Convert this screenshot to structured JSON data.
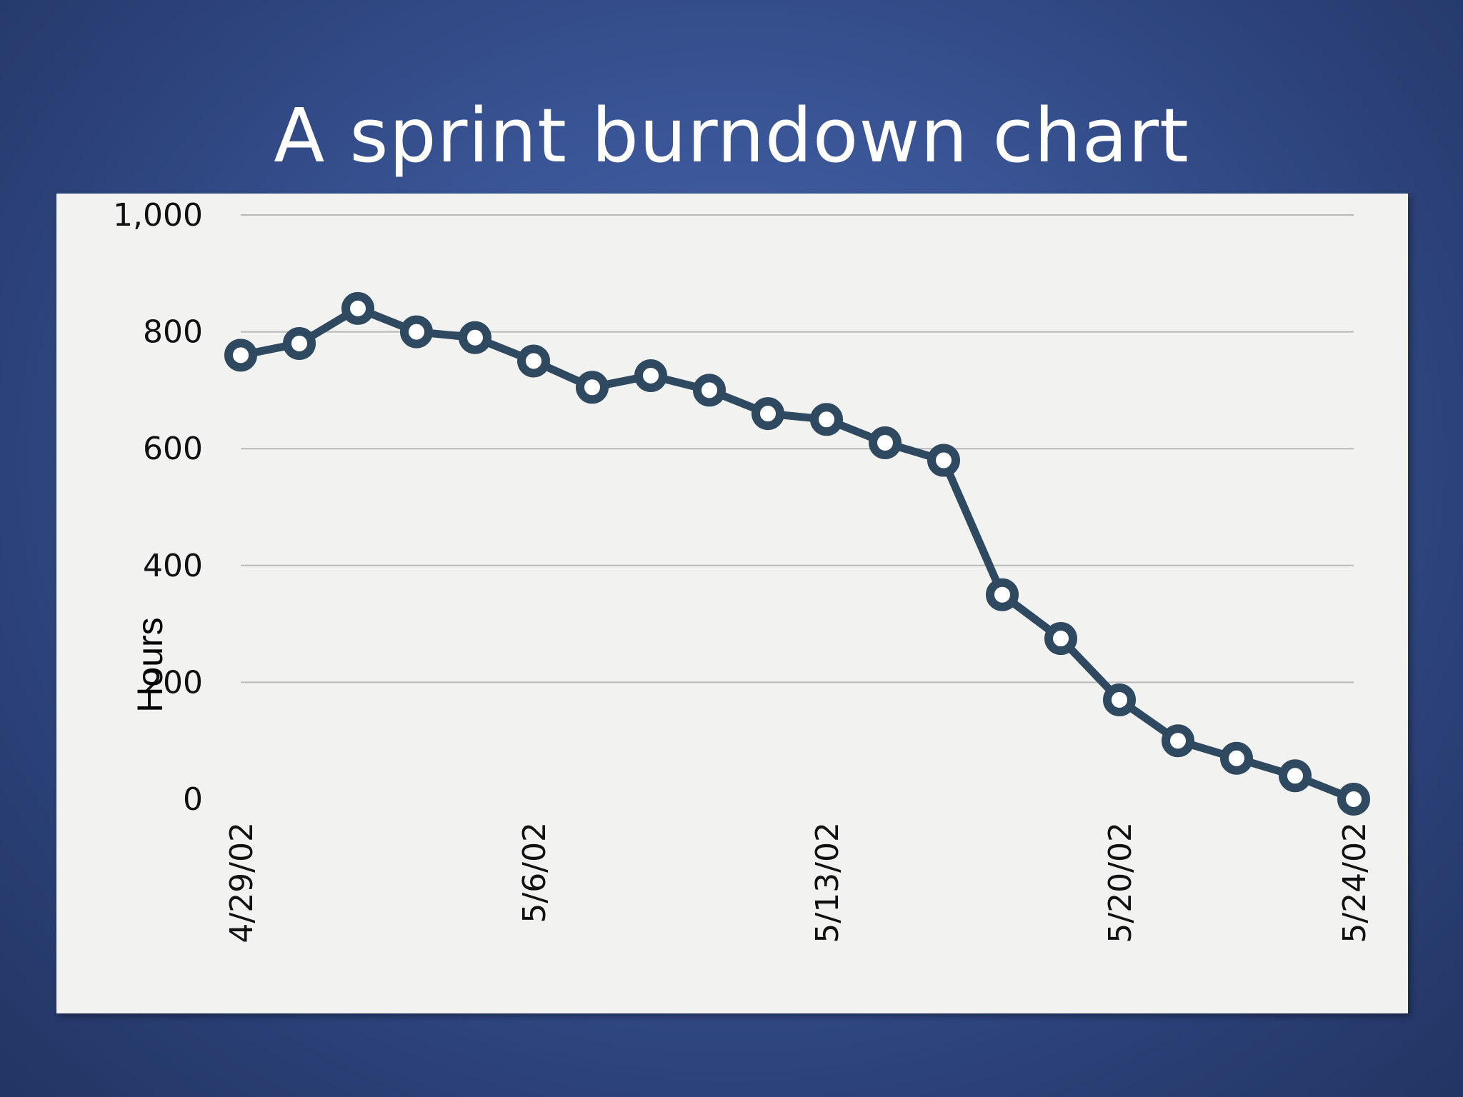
{
  "slide": {
    "title": "A sprint burndown chart",
    "background_color": "#3a5596"
  },
  "chart_data": {
    "type": "line",
    "title": "",
    "xlabel": "",
    "ylabel": "Hours",
    "ylim": [
      0,
      1000
    ],
    "yticks": [
      0,
      200,
      400,
      600,
      800,
      1000
    ],
    "ytick_labels": [
      "0",
      "200",
      "400",
      "600",
      "800",
      "1,000"
    ],
    "grid": true,
    "x": [
      "4/29/02",
      "4/30/02",
      "5/1/02",
      "5/2/02",
      "5/3/02",
      "5/6/02",
      "5/7/02",
      "5/8/02",
      "5/9/02",
      "5/10/02",
      "5/13/02",
      "5/14/02",
      "5/15/02",
      "5/16/02",
      "5/17/02",
      "5/20/02",
      "5/21/02",
      "5/22/02",
      "5/23/02",
      "5/24/02"
    ],
    "xtick_labels": [
      "4/29/02",
      "5/6/02",
      "5/13/02",
      "5/20/02",
      "5/24/02"
    ],
    "series": [
      {
        "color": "#2f4a60",
        "values": [
          760,
          780,
          840,
          800,
          790,
          750,
          705,
          725,
          700,
          660,
          650,
          610,
          580,
          350,
          275,
          170,
          100,
          70,
          40,
          0
        ]
      }
    ]
  }
}
